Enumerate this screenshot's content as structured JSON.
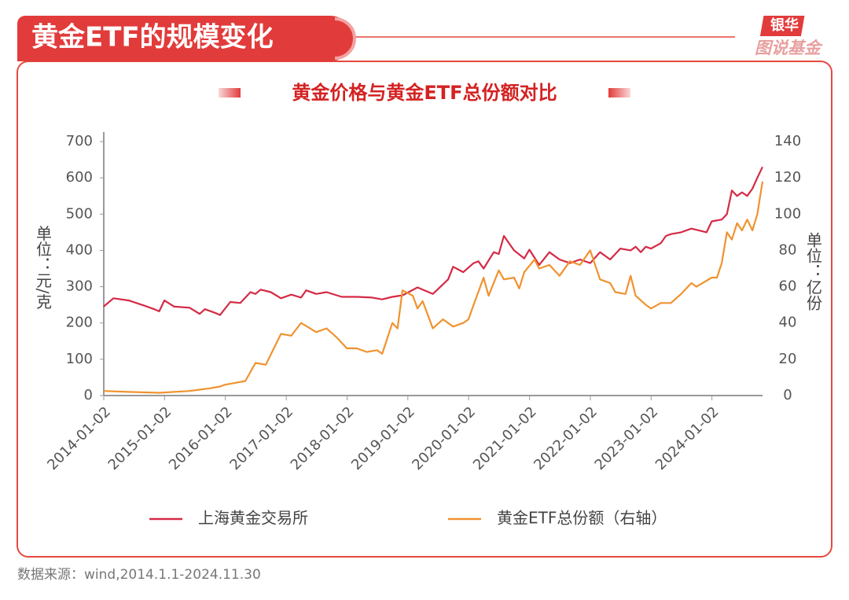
{
  "header": {
    "title": "黄金ETF的规模变化",
    "logo_top": "银华",
    "logo_bottom": "图说基金"
  },
  "source": "数据来源：wind,2014.1.1-2024.11.30",
  "chart_data": {
    "type": "line",
    "title": "黄金价格与黄金ETF总份额对比",
    "y_label": "单位：元/克",
    "y2_label": "单位：亿份",
    "xlim": [
      "2014-01-02",
      "2024-11"
    ],
    "xticks": [
      "2014-01-02",
      "2015-01-02",
      "2016-01-02",
      "2017-01-02",
      "2018-01-02",
      "2019-01-02",
      "2020-01-02",
      "2021-01-02",
      "2022-01-02",
      "2023-01-02",
      "2024-01-02"
    ],
    "ylim": [
      0,
      700
    ],
    "yticks": [
      0,
      100,
      200,
      300,
      400,
      500,
      600,
      700
    ],
    "y2lim": [
      0,
      140
    ],
    "y2ticks": [
      0,
      20,
      40,
      60,
      80,
      100,
      120,
      140
    ],
    "series": [
      {
        "name": "上海黄金交易所",
        "color": "#d42a45",
        "x": [
          "2014-01",
          "2014-03",
          "2014-06",
          "2014-09",
          "2014-11",
          "2014-12",
          "2015-01",
          "2015-03",
          "2015-06",
          "2015-08",
          "2015-09",
          "2015-11",
          "2015-12",
          "2016-02",
          "2016-04",
          "2016-06",
          "2016-07",
          "2016-08",
          "2016-10",
          "2016-12",
          "2017-02",
          "2017-04",
          "2017-05",
          "2017-07",
          "2017-09",
          "2017-12",
          "2018-03",
          "2018-06",
          "2018-08",
          "2018-10",
          "2018-12",
          "2019-03",
          "2019-06",
          "2019-09",
          "2019-10",
          "2019-12",
          "2020-02",
          "2020-03",
          "2020-04",
          "2020-06",
          "2020-07",
          "2020-08",
          "2020-10",
          "2020-12",
          "2021-01",
          "2021-03",
          "2021-05",
          "2021-07",
          "2021-09",
          "2021-11",
          "2022-01",
          "2022-03",
          "2022-05",
          "2022-07",
          "2022-09",
          "2022-10",
          "2022-11",
          "2022-12",
          "2023-01",
          "2023-03",
          "2023-04",
          "2023-05",
          "2023-07",
          "2023-09",
          "2023-12",
          "2024-01",
          "2024-03",
          "2024-04",
          "2024-05",
          "2024-06",
          "2024-07",
          "2024-08",
          "2024-09",
          "2024-10",
          "2024-11"
        ],
        "values": [
          245,
          268,
          262,
          248,
          238,
          232,
          262,
          245,
          242,
          225,
          238,
          228,
          222,
          258,
          255,
          285,
          280,
          292,
          285,
          268,
          278,
          270,
          290,
          280,
          285,
          272,
          272,
          270,
          265,
          272,
          276,
          298,
          280,
          320,
          355,
          340,
          365,
          370,
          350,
          395,
          390,
          440,
          400,
          378,
          402,
          360,
          395,
          375,
          365,
          375,
          365,
          395,
          375,
          405,
          400,
          410,
          395,
          410,
          405,
          420,
          440,
          445,
          450,
          460,
          450,
          480,
          485,
          500,
          565,
          550,
          560,
          550,
          570,
          600,
          630
        ]
      },
      {
        "name": "黄金ETF总份额（右轴）",
        "color": "#f0922f",
        "axis": "y2",
        "x": [
          "2014-01",
          "2014-06",
          "2014-12",
          "2015-06",
          "2015-10",
          "2015-12",
          "2016-01",
          "2016-03",
          "2016-05",
          "2016-07",
          "2016-09",
          "2016-12",
          "2017-02",
          "2017-04",
          "2017-07",
          "2017-09",
          "2017-11",
          "2018-01",
          "2018-03",
          "2018-05",
          "2018-07",
          "2018-08",
          "2018-10",
          "2018-11",
          "2018-12",
          "2019-02",
          "2019-03",
          "2019-04",
          "2019-06",
          "2019-08",
          "2019-10",
          "2019-12",
          "2020-01",
          "2020-02",
          "2020-04",
          "2020-05",
          "2020-07",
          "2020-08",
          "2020-10",
          "2020-11",
          "2020-12",
          "2021-02",
          "2021-03",
          "2021-05",
          "2021-07",
          "2021-09",
          "2021-11",
          "2022-01",
          "2022-03",
          "2022-05",
          "2022-06",
          "2022-08",
          "2022-09",
          "2022-10",
          "2022-12",
          "2023-01",
          "2023-03",
          "2023-05",
          "2023-07",
          "2023-09",
          "2023-10",
          "2024-01",
          "2024-02",
          "2024-03",
          "2024-04",
          "2024-05",
          "2024-06",
          "2024-07",
          "2024-08",
          "2024-09",
          "2024-10",
          "2024-11"
        ],
        "values": [
          2.5,
          2,
          1.5,
          2.5,
          4,
          5,
          6,
          7,
          8,
          18,
          17,
          34,
          33,
          40,
          35,
          37,
          32,
          26,
          26,
          24,
          25,
          23,
          40,
          37,
          58,
          55,
          48,
          52,
          37,
          42,
          38,
          40,
          42,
          50,
          65,
          55,
          69,
          64,
          65,
          59,
          68,
          75,
          70,
          72,
          66,
          74,
          72,
          80,
          64,
          62,
          57,
          56,
          66,
          55,
          50,
          48,
          51,
          51,
          56,
          62,
          60,
          65,
          65,
          73,
          90,
          86,
          95,
          91,
          97,
          91,
          100,
          118
        ]
      }
    ]
  }
}
